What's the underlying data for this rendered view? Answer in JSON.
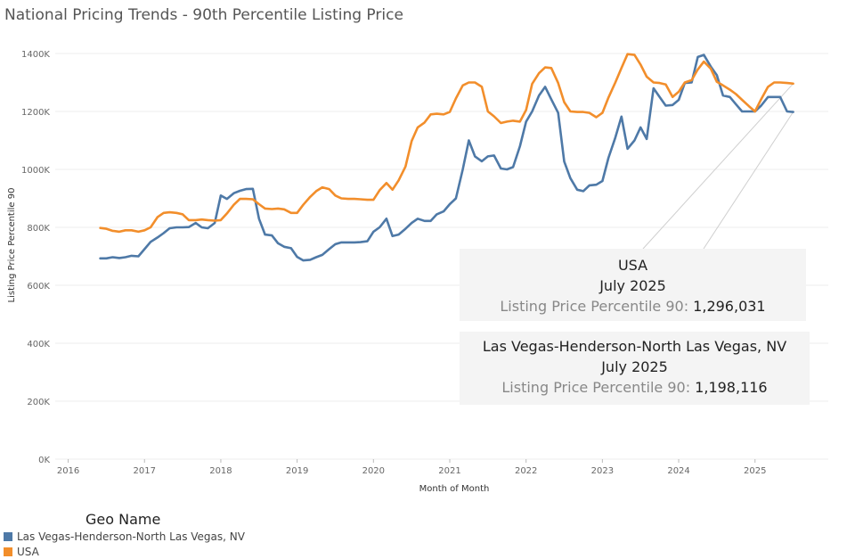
{
  "title": "National Pricing Trends - 90th Percentile Listing Price",
  "colors": {
    "las_vegas": "#4e79a7",
    "usa": "#f28e2b",
    "grid": "#ececec",
    "connector": "#cfcfcf"
  },
  "chart_data": {
    "type": "line",
    "title": "National Pricing Trends - 90th Percentile Listing Price",
    "xlabel": "Month of Month",
    "ylabel": "Listing Price Percentile 90",
    "xlim": [
      2015.83,
      2025.96
    ],
    "ylim": [
      0,
      1400000
    ],
    "y_ticks": [
      0,
      200000,
      400000,
      600000,
      800000,
      1000000,
      1200000,
      1400000
    ],
    "y_tick_labels": [
      "0K",
      "200K",
      "400K",
      "600K",
      "800K",
      "1000K",
      "1200K",
      "1400K"
    ],
    "x_ticks": [
      2016,
      2017,
      2018,
      2019,
      2020,
      2021,
      2022,
      2023,
      2024,
      2025
    ],
    "x_tick_labels": [
      "2016",
      "2017",
      "2018",
      "2019",
      "2020",
      "2021",
      "2022",
      "2023",
      "2024",
      "2025"
    ],
    "series": [
      {
        "name": "Las Vegas-Henderson-North Las Vegas, NV",
        "color": "#4e79a7",
        "x": [
          2016.42,
          2016.5,
          2016.58,
          2016.67,
          2016.75,
          2016.83,
          2016.92,
          2017.0,
          2017.08,
          2017.17,
          2017.25,
          2017.33,
          2017.42,
          2017.5,
          2017.58,
          2017.67,
          2017.75,
          2017.83,
          2017.92,
          2018.0,
          2018.08,
          2018.17,
          2018.25,
          2018.33,
          2018.42,
          2018.5,
          2018.58,
          2018.67,
          2018.75,
          2018.83,
          2018.92,
          2019.0,
          2019.08,
          2019.17,
          2019.25,
          2019.33,
          2019.42,
          2019.5,
          2019.58,
          2019.67,
          2019.75,
          2019.83,
          2019.92,
          2020.0,
          2020.08,
          2020.17,
          2020.25,
          2020.33,
          2020.42,
          2020.5,
          2020.58,
          2020.67,
          2020.75,
          2020.83,
          2020.92,
          2021.0,
          2021.08,
          2021.17,
          2021.25,
          2021.33,
          2021.42,
          2021.5,
          2021.58,
          2021.67,
          2021.75,
          2021.83,
          2021.92,
          2022.0,
          2022.08,
          2022.17,
          2022.25,
          2022.33,
          2022.42,
          2022.5,
          2022.58,
          2022.67,
          2022.75,
          2022.83,
          2022.92,
          2023.0,
          2023.08,
          2023.17,
          2023.25,
          2023.33,
          2023.42,
          2023.5,
          2023.58,
          2023.67,
          2023.75,
          2023.83,
          2023.92,
          2024.0,
          2024.08,
          2024.17,
          2024.25,
          2024.33,
          2024.42,
          2024.5,
          2024.58,
          2024.67,
          2024.75,
          2024.83,
          2024.92,
          2025.0,
          2025.08,
          2025.17,
          2025.25,
          2025.33,
          2025.42,
          2025.5
        ],
        "values": [
          693000,
          693000,
          697000,
          694000,
          697000,
          702000,
          700000,
          725000,
          750000,
          765000,
          780000,
          797000,
          800000,
          800000,
          801000,
          815000,
          800000,
          797000,
          815000,
          910000,
          898000,
          918000,
          926000,
          932000,
          933000,
          830000,
          775000,
          772000,
          745000,
          733000,
          728000,
          698000,
          686000,
          688000,
          697000,
          705000,
          725000,
          742000,
          748000,
          748000,
          748000,
          749000,
          752000,
          785000,
          800000,
          830000,
          770000,
          775000,
          795000,
          815000,
          830000,
          822000,
          822000,
          845000,
          855000,
          880000,
          900000,
          1000000,
          1100000,
          1045000,
          1028000,
          1045000,
          1048000,
          1003000,
          1000000,
          1008000,
          1080000,
          1165000,
          1200000,
          1255000,
          1285000,
          1242000,
          1195000,
          1027000,
          970000,
          930000,
          925000,
          945000,
          947000,
          960000,
          1040000,
          1110000,
          1182000,
          1071000,
          1100000,
          1145000,
          1105000,
          1280000,
          1250000,
          1220000,
          1222000,
          1240000,
          1298000,
          1300000,
          1388000,
          1395000,
          1355000,
          1325000,
          1255000,
          1250000,
          1225000,
          1200000,
          1200000,
          1200000,
          1220000,
          1250000,
          1250000,
          1250000,
          1200000,
          1198116
        ]
      },
      {
        "name": "USA",
        "color": "#f28e2b",
        "x": [
          2016.42,
          2016.5,
          2016.58,
          2016.67,
          2016.75,
          2016.83,
          2016.92,
          2017.0,
          2017.08,
          2017.17,
          2017.25,
          2017.33,
          2017.42,
          2017.5,
          2017.58,
          2017.67,
          2017.75,
          2017.83,
          2017.92,
          2018.0,
          2018.08,
          2018.17,
          2018.25,
          2018.33,
          2018.42,
          2018.5,
          2018.58,
          2018.67,
          2018.75,
          2018.83,
          2018.92,
          2019.0,
          2019.08,
          2019.17,
          2019.25,
          2019.33,
          2019.42,
          2019.5,
          2019.58,
          2019.67,
          2019.75,
          2019.83,
          2019.92,
          2020.0,
          2020.08,
          2020.17,
          2020.25,
          2020.33,
          2020.42,
          2020.5,
          2020.58,
          2020.67,
          2020.75,
          2020.83,
          2020.92,
          2021.0,
          2021.08,
          2021.17,
          2021.25,
          2021.33,
          2021.42,
          2021.5,
          2021.58,
          2021.67,
          2021.75,
          2021.83,
          2021.92,
          2022.0,
          2022.08,
          2022.17,
          2022.25,
          2022.33,
          2022.42,
          2022.5,
          2022.58,
          2022.67,
          2022.75,
          2022.83,
          2022.92,
          2023.0,
          2023.08,
          2023.17,
          2023.25,
          2023.33,
          2023.42,
          2023.5,
          2023.58,
          2023.67,
          2023.75,
          2023.83,
          2023.92,
          2024.0,
          2024.08,
          2024.17,
          2024.25,
          2024.33,
          2024.42,
          2024.5,
          2024.58,
          2024.67,
          2024.75,
          2024.83,
          2024.92,
          2025.0,
          2025.08,
          2025.17,
          2025.25,
          2025.33,
          2025.42,
          2025.5
        ],
        "values": [
          798000,
          795000,
          788000,
          785000,
          790000,
          790000,
          785000,
          790000,
          800000,
          835000,
          850000,
          852000,
          850000,
          845000,
          825000,
          825000,
          827000,
          825000,
          823000,
          825000,
          848000,
          878000,
          898000,
          898000,
          897000,
          880000,
          865000,
          863000,
          865000,
          862000,
          850000,
          850000,
          878000,
          905000,
          925000,
          938000,
          932000,
          910000,
          900000,
          898000,
          898000,
          897000,
          895000,
          895000,
          928000,
          953000,
          930000,
          962000,
          1010000,
          1098000,
          1145000,
          1162000,
          1190000,
          1192000,
          1190000,
          1198000,
          1245000,
          1290000,
          1300000,
          1300000,
          1285000,
          1200000,
          1183000,
          1160000,
          1165000,
          1168000,
          1165000,
          1205000,
          1295000,
          1332000,
          1352000,
          1350000,
          1298000,
          1232000,
          1200000,
          1198000,
          1198000,
          1195000,
          1180000,
          1195000,
          1248000,
          1300000,
          1350000,
          1398000,
          1395000,
          1362000,
          1320000,
          1300000,
          1298000,
          1293000,
          1250000,
          1268000,
          1300000,
          1308000,
          1345000,
          1372000,
          1348000,
          1302000,
          1290000,
          1275000,
          1260000,
          1240000,
          1218000,
          1200000,
          1242000,
          1285000,
          1300000,
          1300000,
          1298000,
          1296031
        ]
      }
    ]
  },
  "tooltips": {
    "usa": {
      "geo": "USA",
      "period": "July 2025",
      "label": "Listing Price Percentile 90:",
      "value": "1,296,031"
    },
    "las_vegas": {
      "geo": "Las Vegas-Henderson-North Las Vegas, NV",
      "period": "July 2025",
      "label": "Listing Price Percentile 90:",
      "value": "1,198,116"
    }
  },
  "legend": {
    "title": "Geo Name",
    "items": [
      {
        "label": "Las Vegas-Henderson-North Las Vegas, NV",
        "color": "#4e79a7"
      },
      {
        "label": "USA",
        "color": "#f28e2b"
      }
    ]
  }
}
